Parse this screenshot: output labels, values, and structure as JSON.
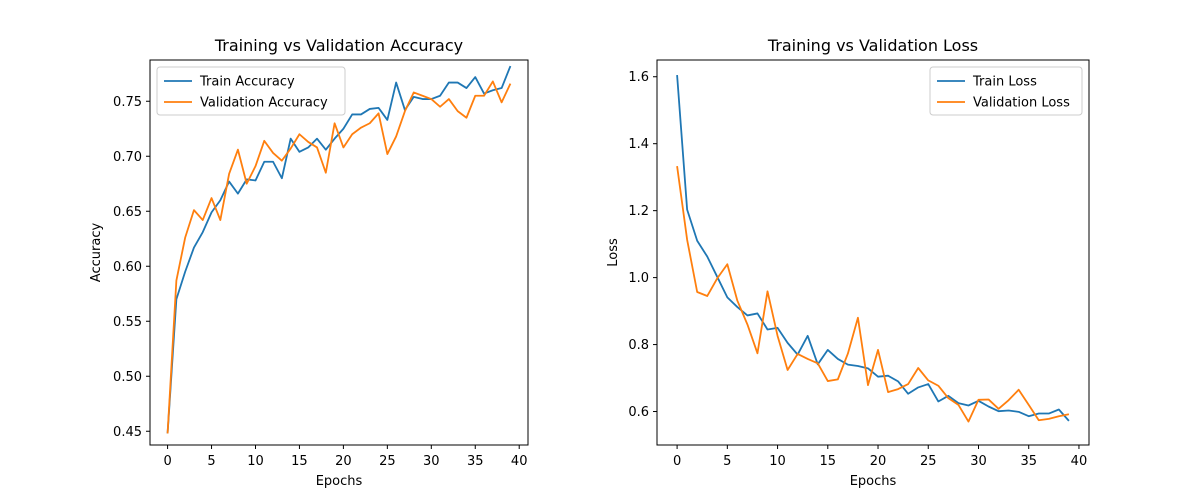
{
  "colors": {
    "train": "#1f77b4",
    "validation": "#ff7f0e"
  },
  "chart_data": [
    {
      "type": "line",
      "title": "Training vs Validation Accuracy",
      "xlabel": "Epochs",
      "ylabel": "Accuracy",
      "xlim": [
        -2,
        41
      ],
      "ylim": [
        0.4375,
        0.7875
      ],
      "xticks": [
        "0",
        "5",
        "10",
        "15",
        "20",
        "25",
        "30",
        "35",
        "40"
      ],
      "yticks": [
        "0.45",
        "0.50",
        "0.55",
        "0.60",
        "0.65",
        "0.70",
        "0.75"
      ],
      "legend_position": "top-left",
      "grid": false,
      "series": [
        {
          "name": "Train Accuracy",
          "x": [
            0,
            1,
            2,
            3,
            4,
            5,
            6,
            7,
            8,
            9,
            10,
            11,
            12,
            13,
            14,
            15,
            16,
            17,
            18,
            19,
            20,
            21,
            22,
            23,
            24,
            25,
            26,
            27,
            28,
            29,
            30,
            31,
            32,
            33,
            34,
            35,
            36,
            37,
            38,
            39
          ],
          "values": [
            0.448,
            0.57,
            0.595,
            0.617,
            0.631,
            0.649,
            0.66,
            0.677,
            0.666,
            0.679,
            0.678,
            0.695,
            0.695,
            0.68,
            0.716,
            0.704,
            0.708,
            0.716,
            0.706,
            0.716,
            0.725,
            0.738,
            0.738,
            0.743,
            0.744,
            0.733,
            0.767,
            0.742,
            0.754,
            0.752,
            0.752,
            0.755,
            0.767,
            0.767,
            0.762,
            0.772,
            0.757,
            0.76,
            0.762,
            0.782
          ]
        },
        {
          "name": "Validation Accuracy",
          "x": [
            0,
            1,
            2,
            3,
            4,
            5,
            6,
            7,
            8,
            9,
            10,
            11,
            12,
            13,
            14,
            15,
            16,
            17,
            18,
            19,
            20,
            21,
            22,
            23,
            24,
            25,
            26,
            27,
            28,
            29,
            30,
            31,
            32,
            33,
            34,
            35,
            36,
            37,
            38,
            39
          ],
          "values": [
            0.448,
            0.587,
            0.626,
            0.651,
            0.642,
            0.662,
            0.642,
            0.684,
            0.706,
            0.675,
            0.691,
            0.714,
            0.703,
            0.696,
            0.707,
            0.72,
            0.713,
            0.708,
            0.685,
            0.73,
            0.708,
            0.72,
            0.726,
            0.73,
            0.739,
            0.702,
            0.718,
            0.741,
            0.758,
            0.755,
            0.752,
            0.745,
            0.752,
            0.741,
            0.735,
            0.755,
            0.755,
            0.768,
            0.749,
            0.766
          ]
        }
      ]
    },
    {
      "type": "line",
      "title": "Training vs Validation Loss",
      "xlabel": "Epochs",
      "ylabel": "Loss",
      "xlim": [
        -2,
        41
      ],
      "ylim": [
        0.5,
        1.65
      ],
      "xticks": [
        "0",
        "5",
        "10",
        "15",
        "20",
        "25",
        "30",
        "35",
        "40"
      ],
      "yticks": [
        "0.6",
        "0.8",
        "1.0",
        "1.2",
        "1.4",
        "1.6"
      ],
      "legend_position": "top-right",
      "grid": false,
      "series": [
        {
          "name": "Train Loss",
          "x": [
            0,
            1,
            2,
            3,
            4,
            5,
            6,
            7,
            8,
            9,
            10,
            11,
            12,
            13,
            14,
            15,
            16,
            17,
            18,
            19,
            20,
            21,
            22,
            23,
            24,
            25,
            26,
            27,
            28,
            29,
            30,
            31,
            32,
            33,
            34,
            35,
            36,
            37,
            38,
            39
          ],
          "values": [
            1.605,
            1.203,
            1.11,
            1.063,
            1.002,
            0.941,
            0.912,
            0.887,
            0.893,
            0.845,
            0.85,
            0.805,
            0.77,
            0.826,
            0.741,
            0.784,
            0.757,
            0.74,
            0.736,
            0.729,
            0.704,
            0.707,
            0.69,
            0.653,
            0.672,
            0.682,
            0.63,
            0.647,
            0.625,
            0.618,
            0.632,
            0.615,
            0.601,
            0.603,
            0.599,
            0.586,
            0.594,
            0.594,
            0.606,
            0.572
          ]
        },
        {
          "name": "Validation Loss",
          "x": [
            0,
            1,
            2,
            3,
            4,
            5,
            6,
            7,
            8,
            9,
            10,
            11,
            12,
            13,
            14,
            15,
            16,
            17,
            18,
            19,
            20,
            21,
            22,
            23,
            24,
            25,
            26,
            27,
            28,
            29,
            30,
            31,
            32,
            33,
            34,
            35,
            36,
            37,
            38,
            39
          ],
          "values": [
            1.333,
            1.113,
            0.957,
            0.945,
            0.998,
            1.04,
            0.931,
            0.86,
            0.774,
            0.959,
            0.826,
            0.724,
            0.772,
            0.757,
            0.744,
            0.691,
            0.696,
            0.773,
            0.88,
            0.679,
            0.784,
            0.658,
            0.667,
            0.682,
            0.73,
            0.693,
            0.677,
            0.64,
            0.62,
            0.57,
            0.635,
            0.636,
            0.608,
            0.634,
            0.665,
            0.62,
            0.574,
            0.578,
            0.586,
            0.592
          ]
        }
      ]
    }
  ]
}
